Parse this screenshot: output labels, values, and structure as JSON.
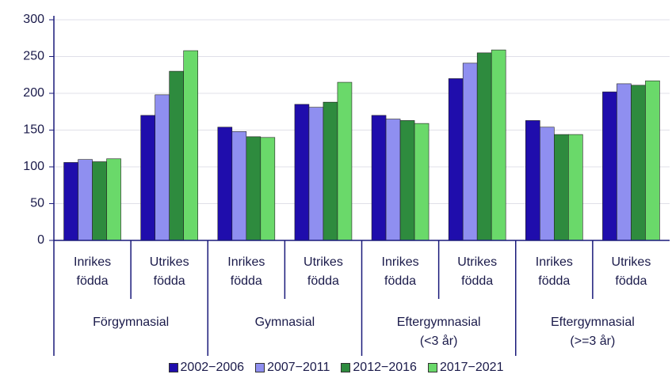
{
  "chart_data": {
    "type": "bar",
    "categories": [
      "Inrikes\nfödda",
      "Utrikes\nfödda",
      "Inrikes\nfödda",
      "Utrikes\nfödda",
      "Inrikes\nfödda",
      "Utrikes\nfödda",
      "Inrikes\nfödda",
      "Utrikes\nfödda"
    ],
    "groups": [
      "Förgymnasial",
      "Gymnasial",
      "Eftergymnasial\n(<3 år)",
      "Eftergymnasial\n(>=3 år)"
    ],
    "series": [
      {
        "name": "2002−2006",
        "color": "#1f0dac",
        "values": [
          106,
          170,
          154,
          185,
          170,
          220,
          163,
          202
        ]
      },
      {
        "name": "2007−2011",
        "color": "#8f8ff0",
        "values": [
          110,
          198,
          148,
          181,
          165,
          241,
          154,
          213
        ]
      },
      {
        "name": "2012−2016",
        "color": "#2e8b3e",
        "values": [
          107,
          230,
          141,
          188,
          163,
          255,
          144,
          211
        ]
      },
      {
        "name": "2017−2021",
        "color": "#6ad96a",
        "values": [
          111,
          258,
          140,
          215,
          159,
          259,
          144,
          217
        ]
      }
    ],
    "ylim": [
      0,
      300
    ],
    "yticks": [
      0,
      50,
      100,
      150,
      200,
      250,
      300
    ],
    "grid": true
  }
}
